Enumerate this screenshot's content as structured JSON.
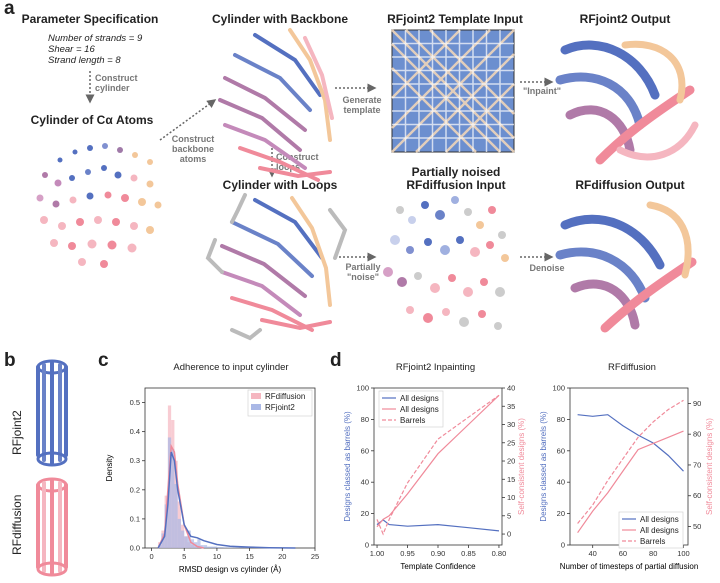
{
  "colors": {
    "blue": "#5470c0",
    "pink": "#f08a9a",
    "light_pink": "#f5b6c0",
    "peach": "#f3c79a",
    "mauve": "#b07aa8",
    "gray": "#888888"
  },
  "panel_a": {
    "letter": "a",
    "param_title": "Parameter Specification",
    "params": [
      "Number of strands = 9",
      "Shear = 16",
      "Strand length = 8"
    ],
    "construct_cylinder": [
      "Construct",
      "cylinder"
    ],
    "ca_title": "Cylinder of Cα Atoms",
    "backbone_title": "Cylinder with Backbone",
    "construct_backbone": [
      "Construct",
      "backbone",
      "atoms"
    ],
    "construct_loops": [
      "Construct",
      "loops"
    ],
    "loops_title": "Cylinder with Loops",
    "template_title": "RFjoint2 Template Input",
    "generate_template": [
      "Generate",
      "template"
    ],
    "rfjoint_output_title": "RFjoint2 Output",
    "inpaint": "\"Inpaint\"",
    "noised_title": [
      "Partially noised",
      "RFdiffusion Input"
    ],
    "partially_noise": [
      "Partially",
      "\"noise\""
    ],
    "denoise": "Denoise",
    "rfdiff_output_title": "RFdiffusion Output"
  },
  "panel_b": {
    "letter": "b",
    "label_top": "RFjoint2",
    "label_bottom": "RFdiffusion"
  },
  "panel_c": {
    "letter": "c"
  },
  "panel_d": {
    "letter": "d"
  },
  "chart_data": [
    {
      "type": "histogram",
      "title": "Adherence to input cylinder",
      "xlabel": "RMSD design vs cylinder (Å)",
      "ylabel": "Density",
      "xlim": [
        -1,
        25
      ],
      "ylim": [
        0,
        0.55
      ],
      "xticks": [
        "0",
        "5",
        "10",
        "15",
        "20",
        "25"
      ],
      "yticks": [
        "0.0",
        "0.1",
        "0.2",
        "0.3",
        "0.4",
        "0.5"
      ],
      "legend": [
        "RFdiffusion",
        "RFjoint2"
      ],
      "bin_width": 0.5,
      "bins_start": 1.0,
      "series": [
        {
          "name": "RFdiffusion",
          "values": [
            0.02,
            0.06,
            0.18,
            0.49,
            0.44,
            0.3,
            0.16,
            0.08,
            0.04,
            0.02,
            0.01,
            0.005,
            0.003,
            0.002
          ]
        },
        {
          "name": "RFjoint2",
          "values": [
            0.01,
            0.05,
            0.15,
            0.38,
            0.34,
            0.22,
            0.1,
            0.06,
            0.04,
            0.06,
            0.03,
            0.02,
            0.03,
            0.01,
            0.01,
            0.005,
            0.005,
            0.005,
            0.003,
            0.003,
            0.002,
            0.002,
            0.002,
            0.002,
            0.002,
            0.002,
            0.002,
            0.002
          ]
        }
      ],
      "kde": [
        {
          "name": "RFdiffusion",
          "x": [
            1,
            2,
            2.5,
            3,
            3.5,
            4,
            5,
            6,
            7,
            8
          ],
          "y": [
            0.0,
            0.05,
            0.2,
            0.35,
            0.33,
            0.22,
            0.08,
            0.02,
            0.005,
            0.0
          ]
        },
        {
          "name": "RFjoint2",
          "x": [
            1,
            2,
            2.5,
            3,
            3.5,
            4,
            5,
            6,
            7,
            8,
            10,
            12,
            15,
            18,
            22
          ],
          "y": [
            0.0,
            0.04,
            0.15,
            0.33,
            0.3,
            0.2,
            0.08,
            0.04,
            0.035,
            0.025,
            0.012,
            0.006,
            0.003,
            0.001,
            0.0
          ]
        }
      ]
    },
    {
      "type": "line",
      "title": "RFjoint2 Inpainting",
      "xlabel": "Template Confidence",
      "ylabel_left": "Designs classed as barrels (%)",
      "ylabel_right": "Self-consistent designs (%)",
      "x": [
        1.0,
        0.99,
        0.98,
        0.95,
        0.9,
        0.85,
        0.8
      ],
      "xlim": [
        1.005,
        0.795
      ],
      "xticks": [
        "1.00",
        "0.95",
        "0.90",
        "0.85",
        "0.80"
      ],
      "ylim_left": [
        0,
        100
      ],
      "yticks_left": [
        "0",
        "20",
        "40",
        "60",
        "80",
        "100"
      ],
      "ylim_right": [
        -3,
        40
      ],
      "yticks_right": [
        "0",
        "5",
        "10",
        "15",
        "20",
        "25",
        "30",
        "35",
        "40"
      ],
      "legend": [
        "All designs",
        "All designs",
        "Barrels"
      ],
      "series": [
        {
          "name": "All designs",
          "axis": "left",
          "style": "solid",
          "color": "#5470c0",
          "values": [
            13,
            16,
            13,
            12,
            13,
            11,
            9
          ]
        },
        {
          "name": "All designs",
          "axis": "right",
          "style": "solid",
          "color": "#f08a9a",
          "values": [
            2,
            4,
            5,
            11,
            22,
            30,
            38
          ]
        },
        {
          "name": "Barrels",
          "axis": "right",
          "style": "dashed",
          "color": "#f08a9a",
          "values": [
            4,
            0,
            4,
            14,
            26,
            32,
            38
          ]
        }
      ]
    },
    {
      "type": "line",
      "title": "RFdiffusion",
      "xlabel": "Number of timesteps of partial diffusion",
      "ylabel_left": "Designs classed as barrels (%)",
      "ylabel_right": "Self-consistent designs (%)",
      "x": [
        30,
        40,
        50,
        60,
        70,
        80,
        90,
        100
      ],
      "xlim": [
        25,
        103
      ],
      "xticks": [
        "40",
        "60",
        "80",
        "100"
      ],
      "ylim_left": [
        0,
        100
      ],
      "yticks_left": [
        "0",
        "20",
        "40",
        "60",
        "80",
        "100"
      ],
      "ylim_right": [
        44,
        95
      ],
      "yticks_right": [
        "50",
        "60",
        "70",
        "80",
        "90"
      ],
      "legend": [
        "All designs",
        "All designs",
        "Barrels"
      ],
      "series": [
        {
          "name": "All designs",
          "axis": "left",
          "style": "solid",
          "color": "#5470c0",
          "values": [
            83,
            82,
            83,
            76,
            70,
            65,
            57,
            47
          ]
        },
        {
          "name": "All designs",
          "axis": "right",
          "style": "solid",
          "color": "#f08a9a",
          "values": [
            48,
            55,
            61,
            68,
            75,
            77,
            79,
            81
          ]
        },
        {
          "name": "Barrels",
          "axis": "right",
          "style": "dashed",
          "color": "#f08a9a",
          "values": [
            51,
            57,
            65,
            72,
            79,
            84,
            88,
            91
          ]
        }
      ]
    }
  ]
}
